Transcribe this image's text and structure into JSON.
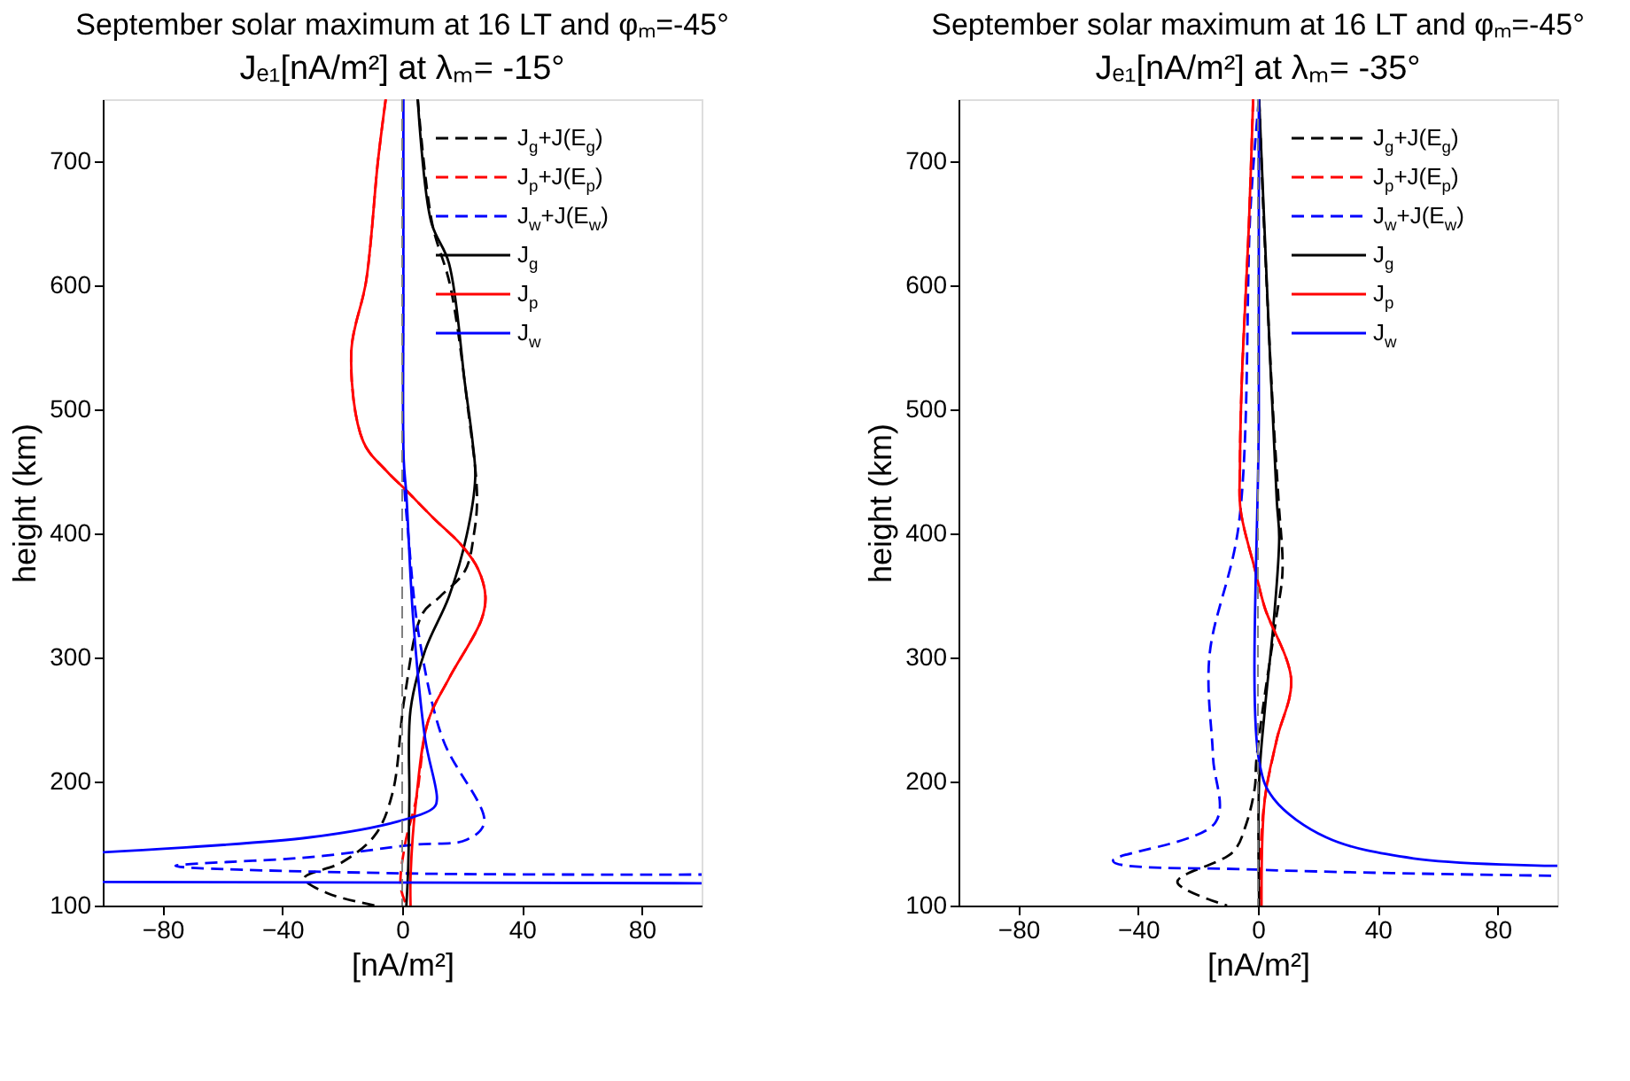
{
  "chart_data": [
    {
      "type": "line",
      "title": "September solar maximum at 16 LT and φₘ=-45°",
      "subtitle": "Jₑ₁[nA/m²] at λₘ= -15°",
      "xlabel": "[nA/m²]",
      "ylabel": "height (km)",
      "xlim": [
        -100,
        100
      ],
      "xticks": [
        -80,
        -40,
        0,
        40,
        80
      ],
      "ylim": [
        100,
        750
      ],
      "yticks": [
        100,
        200,
        300,
        400,
        500,
        600,
        700
      ],
      "grid": false,
      "legend": "top right",
      "ref_lines": [
        {
          "axis": "x",
          "value": 0,
          "color": "#808080",
          "line_style": "dashed"
        }
      ],
      "series": [
        {
          "name": "J$_{g}$+J(E$_{g}$)",
          "color": "#000000",
          "line_style": "dashed",
          "x": [
            5.2,
            10,
            16,
            22,
            25,
            24,
            21,
            12.6,
            6.7,
            0.8,
            -3.2,
            -9,
            -20,
            -32.7,
            -25,
            -9
          ],
          "values": [
            750,
            650,
            600,
            500,
            430,
            400,
            370,
            349,
            335,
            268,
            191,
            157,
            135,
            122,
            110,
            100
          ]
        },
        {
          "name": "J$_{p}$+J(E$_{p}$)",
          "color": "#ff0000",
          "line_style": "dashed",
          "x": [
            -5.5,
            -8.1,
            -12,
            -17,
            -13,
            -5.1,
            0.8,
            10.6,
            20,
            25.4,
            27.8,
            26.4,
            15.6,
            8.7,
            4.7,
            1,
            -0.5,
            1.5
          ],
          "values": [
            750,
            700,
            604,
            546,
            474,
            450,
            436,
            412,
            390,
            371,
            349,
            330,
            283,
            249,
            186,
            150,
            115,
            100
          ]
        },
        {
          "name": "J$_{w}$+J(E$_{w}$)",
          "color": "#0000ff",
          "line_style": "dashed",
          "x": [
            0.2,
            0.3,
            0.5,
            2,
            5.7,
            13.6,
            27.4,
            21.5,
            3.7,
            -30.8,
            -75.7,
            -1.2,
            100
          ],
          "values": [
            750,
            600,
            450,
            400,
            316,
            234,
            167,
            153,
            149,
            139,
            132,
            126,
            125
          ]
        },
        {
          "name": "J$_{g}$",
          "color": "#000000",
          "line_style": "solid",
          "x": [
            5.2,
            9.7,
            15.6,
            21,
            23.5,
            24.4,
            21.5,
            15.6,
            7.7,
            2.8,
            2.4,
            2.0,
            1.4
          ],
          "values": [
            750,
            651,
            618,
            520,
            474,
            445,
            398,
            349,
            306,
            258,
            186,
            130,
            100
          ]
        },
        {
          "name": "J$_{p}$",
          "color": "#ff0000",
          "line_style": "solid",
          "x": [
            -5.5,
            -8.1,
            -12,
            -17,
            -13,
            -5.1,
            0.8,
            10.6,
            20,
            25.4,
            27.8,
            26.4,
            15.6,
            8.7,
            4.7,
            2.8,
            2.8
          ],
          "values": [
            750,
            700,
            604,
            546,
            474,
            450,
            436,
            412,
            390,
            371,
            349,
            330,
            283,
            249,
            186,
            124,
            100
          ]
        },
        {
          "name": "J$_{w}$",
          "color": "#0000ff",
          "line_style": "solid",
          "x": [
            0.4,
            0.4,
            0.5,
            1.4,
            3.7,
            7.7,
            11.6,
            10.6,
            -1.2,
            -30.8,
            -100,
            null,
            -100,
            100
          ],
          "values": [
            750,
            600,
            460,
            431,
            330,
            234,
            186,
            179,
            168,
            155,
            143,
            null,
            119,
            118
          ]
        }
      ]
    },
    {
      "type": "line",
      "title": "September solar maximum at 16 LT and φₘ=-45°",
      "subtitle": "Jₑ₁[nA/m²] at λₘ= -35°",
      "xlabel": "[nA/m²]",
      "ylabel": "height (km)",
      "xlim": [
        -100,
        100
      ],
      "xticks": [
        -80,
        -40,
        0,
        40,
        80
      ],
      "ylim": [
        100,
        750
      ],
      "yticks": [
        100,
        200,
        300,
        400,
        500,
        600,
        700
      ],
      "grid": false,
      "legend": "top right",
      "ref_lines": [
        {
          "axis": "x",
          "value": 0,
          "color": "#808080",
          "line_style": "dashed"
        }
      ],
      "series": [
        {
          "name": "J$_{g}$+J(E$_{g}$)",
          "color": "#000000",
          "line_style": "dashed",
          "x": [
            0.4,
            2,
            5,
            6.9,
            8.2,
            6,
            1.6,
            -0.6,
            -1,
            -4,
            -8.4,
            -26.9,
            -10.3
          ],
          "values": [
            750,
            650,
            500,
            426,
            369,
            330,
            258,
            215,
            196,
            165,
            143,
            119,
            100
          ]
        },
        {
          "name": "J$_{p}$+J(E$_{p}$)",
          "color": "#ff0000",
          "line_style": "dashed",
          "x": [
            -1.6,
            -3,
            -5.4,
            -6,
            -5.8,
            -1,
            2.3,
            11.1,
            6.3,
            2.3,
            0.8,
            0.4
          ],
          "values": [
            750,
            650,
            522,
            455,
            419,
            371,
            340,
            282,
            234,
            186,
            140,
            100
          ]
        },
        {
          "name": "J$_{w}$+J(E$_{w}$)",
          "color": "#0000ff",
          "line_style": "dashed",
          "x": [
            0.3,
            -2.5,
            -6.4,
            -16.2,
            -15,
            -14.2,
            -48.4,
            -0.6,
            100
          ],
          "values": [
            750,
            661,
            407,
            301,
            220,
            167,
            136,
            129,
            124
          ]
        },
        {
          "name": "J$_{g}$",
          "color": "#000000",
          "line_style": "solid",
          "x": [
            0.4,
            3,
            6.3,
            7.1,
            5.3,
            2.3,
            0.4,
            0.4
          ],
          "values": [
            750,
            600,
            426,
            397,
            330,
            258,
            200,
            100
          ]
        },
        {
          "name": "J$_{p}$",
          "color": "#ff0000",
          "line_style": "solid",
          "x": [
            -1.6,
            -3,
            -5.4,
            -6,
            -5.8,
            -1,
            2.3,
            11.1,
            6.3,
            2.3,
            1.2
          ],
          "values": [
            750,
            650,
            522,
            455,
            419,
            371,
            340,
            282,
            234,
            186,
            100
          ]
        },
        {
          "name": "J$_{w}$",
          "color": "#0000ff",
          "line_style": "solid",
          "x": [
            0.3,
            0.3,
            0.5,
            5.3,
            22.8,
            52,
            100
          ],
          "values": [
            750,
            500,
            215,
            186,
            155,
            138,
            132
          ]
        }
      ]
    }
  ]
}
